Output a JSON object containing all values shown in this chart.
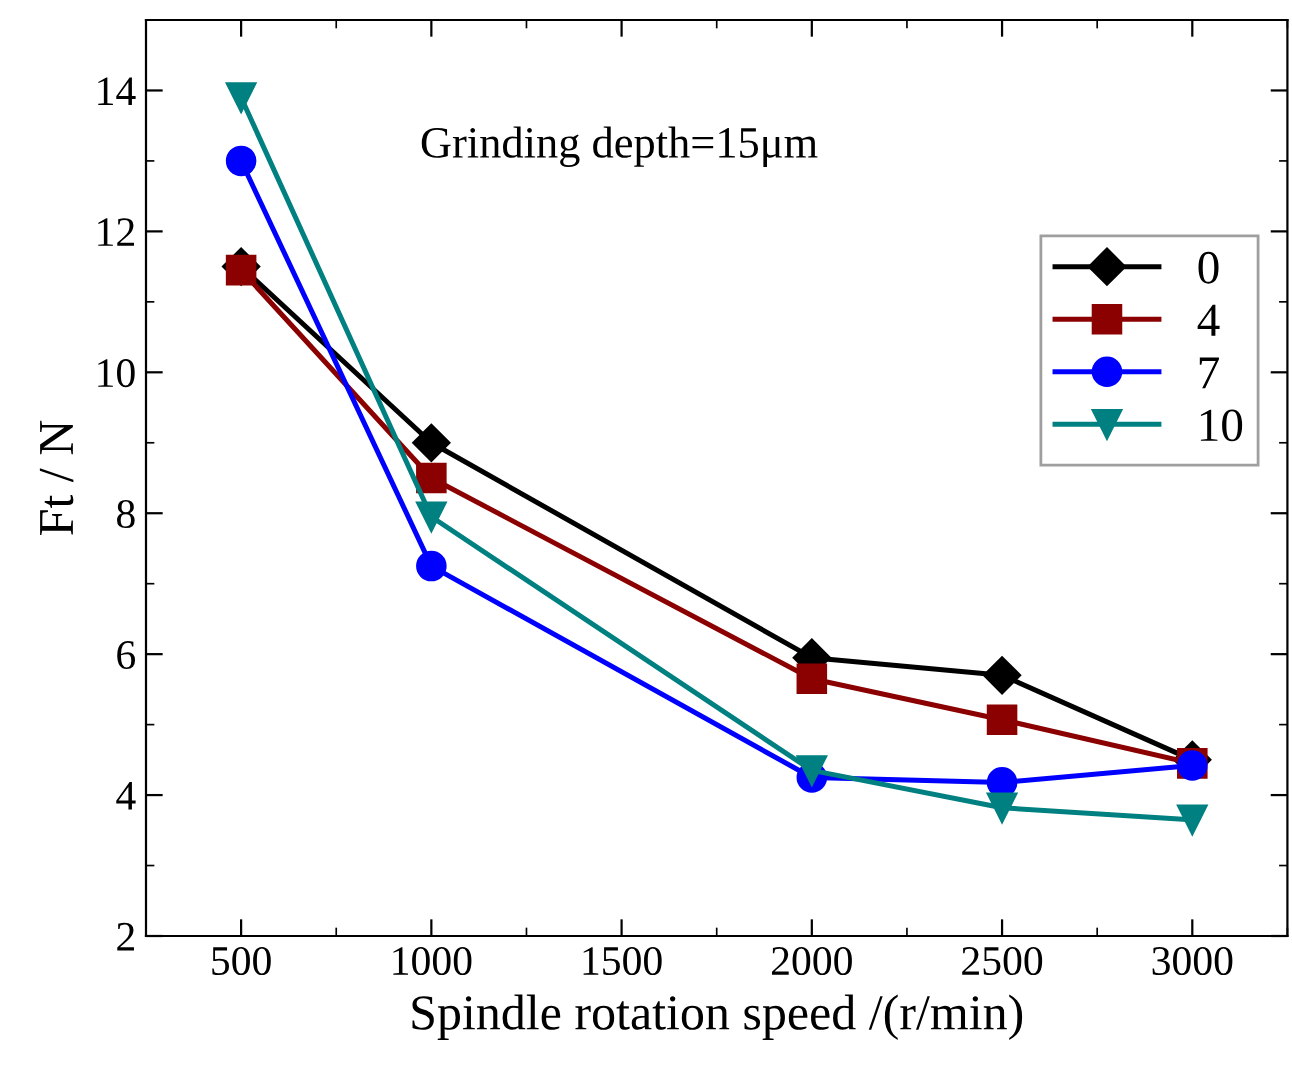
{
  "chart_data": {
    "type": "line",
    "xlabel": "Spindle rotation speed /(r/min)",
    "ylabel": "Ft / N",
    "annotations": [
      "Grinding depth=15μm"
    ],
    "x": [
      500,
      1000,
      2000,
      2500,
      3000
    ],
    "series": [
      {
        "name": "0",
        "color": "#000000",
        "marker": "diamond",
        "values": [
          11.5,
          9.0,
          5.95,
          5.7,
          4.5
        ]
      },
      {
        "name": "4",
        "color": "#8b0000",
        "marker": "square",
        "values": [
          11.45,
          8.5,
          5.65,
          5.07,
          4.45
        ]
      },
      {
        "name": "7",
        "color": "#0000ff",
        "marker": "circle",
        "values": [
          13.0,
          7.25,
          4.25,
          4.18,
          4.42
        ]
      },
      {
        "name": "10",
        "color": "#008080",
        "marker": "triangle",
        "values": [
          13.9,
          7.95,
          4.35,
          3.82,
          3.65
        ]
      }
    ],
    "xlim": [
      250,
      3250
    ],
    "xticks": [
      500,
      1000,
      1500,
      2000,
      2500,
      3000
    ],
    "ylim": [
      2,
      15
    ],
    "yticks": [
      2,
      4,
      6,
      8,
      10,
      12,
      14
    ],
    "legend": "top right",
    "grid": false,
    "line_style": "solid"
  }
}
